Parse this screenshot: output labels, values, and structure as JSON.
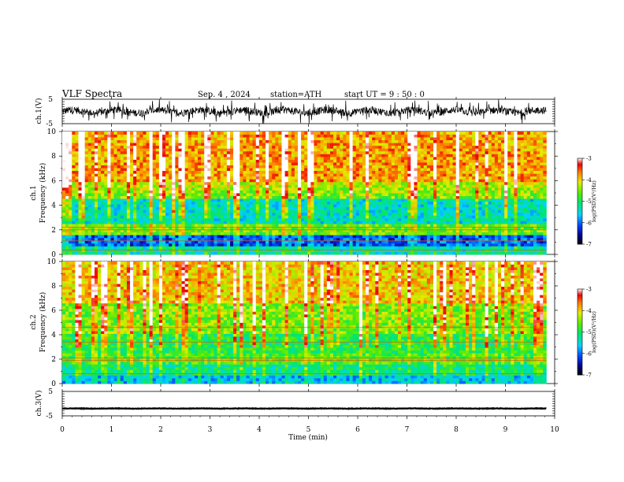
{
  "header": {
    "title": "VLF  Spectra",
    "date": "Sep. 4  , 2024",
    "station": "station=ATH",
    "start": "start  UT  =   9  : 50 : 0"
  },
  "chart_data": [
    {
      "type": "line",
      "panel": "ch1-waveform",
      "ylabel": "ch.1(V)",
      "ylim": [
        -5,
        5
      ],
      "yticks": [
        "5",
        "-5"
      ],
      "xlim": [
        0,
        9.83
      ],
      "trace_level": 0,
      "trace_amplitude": 5,
      "color": "#000000"
    },
    {
      "type": "heatmap",
      "panel": "ch1-spectrogram",
      "ylabel": "ch.1\nFrequency  (kHz)",
      "ylim": [
        0,
        10
      ],
      "yticks": [
        "0",
        "2",
        "4",
        "6",
        "8",
        "10"
      ],
      "xlim": [
        0,
        9.83
      ],
      "colorbar": {
        "label": "log(PSD)(V²/Hz)",
        "range": [
          -7,
          -3
        ],
        "ticks": [
          "-3",
          "-4",
          "-5",
          "-6",
          "-7"
        ]
      }
    },
    {
      "type": "heatmap",
      "panel": "ch2-spectrogram",
      "ylabel": "ch.2\nFrequency  (kHz)",
      "ylim": [
        0,
        10
      ],
      "yticks": [
        "0",
        "2",
        "4",
        "6",
        "8",
        "10"
      ],
      "xlim": [
        0,
        9.83
      ],
      "colorbar": {
        "label": "log(PSD)(V²/Hz)",
        "range": [
          -7,
          -3
        ],
        "ticks": [
          "-3",
          "-4",
          "-5",
          "-6",
          "-7"
        ]
      }
    },
    {
      "type": "line",
      "panel": "ch3-waveform",
      "ylabel": "ch.3(V)",
      "ylim": [
        -5,
        5
      ],
      "yticks": [
        "5",
        "-5"
      ],
      "xlim": [
        0,
        9.83
      ],
      "trace_level": -2,
      "trace_amplitude": 0.3,
      "color": "#000000"
    }
  ],
  "xaxis": {
    "label": "Time  (min)",
    "range": [
      0,
      10
    ],
    "ticks": [
      "0",
      "1",
      "2",
      "3",
      "4",
      "5",
      "6",
      "7",
      "8",
      "9",
      "10"
    ]
  }
}
